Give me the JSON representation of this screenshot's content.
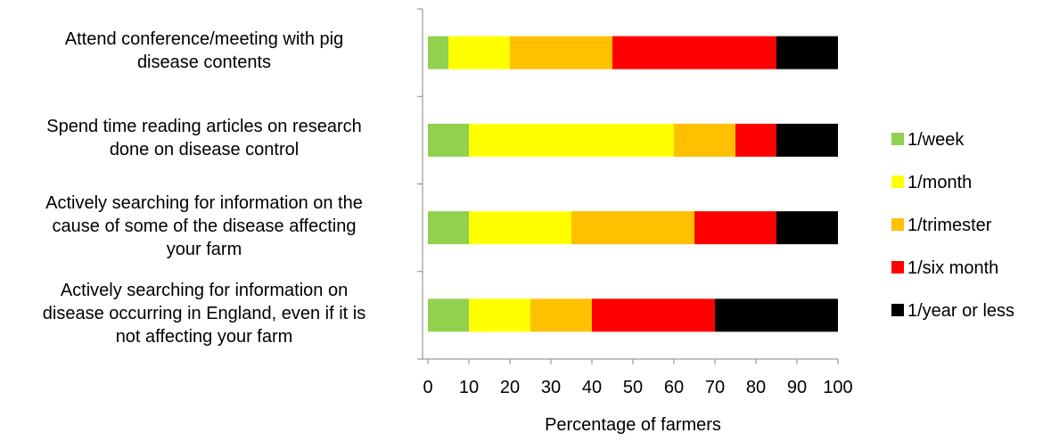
{
  "chart_data": {
    "type": "bar",
    "orientation": "horizontal",
    "stacked": true,
    "categories": [
      "Attend conference/meeting with pig\ndisease contents",
      "Spend time reading articles on research\ndone on disease control",
      "Actively searching for information on the\ncause of some of the disease affecting\nyour farm",
      "Actively searching for information on\ndisease occurring in England, even if it is\nnot affecting your farm"
    ],
    "series": [
      {
        "name": "1/week",
        "color": "#92D050",
        "values": [
          5,
          10,
          10,
          10
        ]
      },
      {
        "name": "1/month",
        "color": "#FFFF00",
        "values": [
          15,
          50,
          25,
          15
        ]
      },
      {
        "name": "1/trimester",
        "color": "#FFC000",
        "values": [
          25,
          15,
          30,
          15
        ]
      },
      {
        "name": "1/six month",
        "color": "#FF0000",
        "values": [
          40,
          10,
          20,
          30
        ]
      },
      {
        "name": "1/year or less",
        "color": "#000000",
        "values": [
          15,
          15,
          15,
          30
        ]
      }
    ],
    "xlabel": "Percentage of farmers",
    "ylabel": "",
    "xlim": [
      0,
      100
    ],
    "xticks": [
      "0",
      "10",
      "20",
      "30",
      "40",
      "50",
      "60",
      "70",
      "80",
      "90",
      "100"
    ],
    "grid": false,
    "legend_position": "right"
  }
}
